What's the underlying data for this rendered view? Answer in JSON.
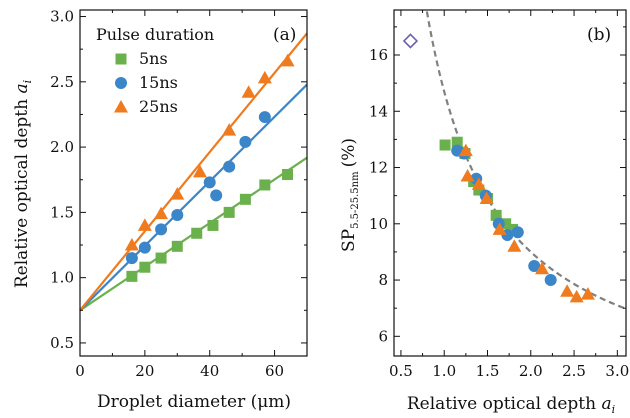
{
  "chart_data": [
    {
      "panel": "(a)",
      "type": "scatter",
      "xlabel": "Droplet diameter (μm)",
      "ylabel": "Relative optical depth a_i",
      "ylabel_main": "Relative optical depth",
      "ylabel_var": "a",
      "ylabel_sub": "i",
      "xlim": [
        0,
        70
      ],
      "ylim": [
        0.4,
        3.05
      ],
      "xticks": [
        0,
        20,
        40,
        60
      ],
      "yticks": [
        0.5,
        1.0,
        1.5,
        2.0,
        2.5,
        3.0
      ],
      "ytick_labels": [
        "0.5",
        "1.0",
        "1.5",
        "2.0",
        "2.5",
        "3.0"
      ],
      "legend_title": "Pulse duration",
      "legend_position": "top-left",
      "series": [
        {
          "name": "5ns",
          "marker": "square",
          "color": "#6ab04c",
          "x": [
            16,
            20,
            25,
            30,
            36,
            41,
            46,
            51,
            57,
            64
          ],
          "y": [
            1.01,
            1.08,
            1.15,
            1.24,
            1.34,
            1.4,
            1.5,
            1.6,
            1.71,
            1.79
          ],
          "fit": {
            "intercept": 0.75,
            "slope": 0.0167
          }
        },
        {
          "name": "15ns",
          "marker": "circle",
          "color": "#3a86c8",
          "x": [
            16,
            20,
            25,
            30,
            40,
            42,
            46,
            51,
            57
          ],
          "y": [
            1.15,
            1.23,
            1.37,
            1.48,
            1.73,
            1.63,
            1.85,
            2.04,
            2.23
          ],
          "fit": {
            "intercept": 0.75,
            "slope": 0.0247
          }
        },
        {
          "name": "25ns",
          "marker": "triangle",
          "color": "#f07a1e",
          "x": [
            16,
            20,
            25,
            30,
            37,
            46,
            52,
            57,
            64
          ],
          "y": [
            1.25,
            1.4,
            1.49,
            1.64,
            1.81,
            2.13,
            2.42,
            2.53,
            2.66
          ],
          "fit": {
            "intercept": 0.75,
            "slope": 0.0303
          }
        }
      ]
    },
    {
      "panel": "(b)",
      "type": "scatter",
      "xlabel": "Relative optical depth a_i",
      "xlabel_main": "Relative optical depth",
      "xlabel_var": "a",
      "xlabel_sub": "i",
      "ylabel": "SP_5.5-25.5nm (%)",
      "ylabel_main": "SP",
      "ylabel_sub": "5.5-25.5nm",
      "ylabel_unit": "(%)",
      "xlim": [
        0.42,
        3.1
      ],
      "ylim": [
        5.3,
        17.6
      ],
      "xticks": [
        0.5,
        1.0,
        1.5,
        2.0,
        2.5,
        3.0
      ],
      "xtick_labels": [
        "0.5",
        "1.0",
        "1.5",
        "2.0",
        "2.5",
        "3.0"
      ],
      "yticks": [
        6,
        8,
        10,
        12,
        14,
        16
      ],
      "series": [
        {
          "name": "5ns",
          "marker": "square",
          "color": "#6ab04c",
          "x": [
            1.01,
            1.15,
            1.24,
            1.34,
            1.4,
            1.5,
            1.6,
            1.71,
            1.79
          ],
          "y": [
            12.8,
            12.9,
            12.5,
            11.5,
            11.2,
            10.9,
            10.3,
            10.0,
            9.8
          ]
        },
        {
          "name": "15ns",
          "marker": "circle",
          "color": "#3a86c8",
          "x": [
            1.15,
            1.23,
            1.37,
            1.48,
            1.63,
            1.73,
            1.85,
            2.04,
            2.23
          ],
          "y": [
            12.6,
            12.5,
            11.6,
            11.0,
            10.0,
            9.6,
            9.7,
            8.5,
            8.0
          ]
        },
        {
          "name": "25ns",
          "marker": "triangle",
          "color": "#f07a1e",
          "x": [
            1.25,
            1.27,
            1.4,
            1.49,
            1.64,
            1.81,
            2.13,
            2.42,
            2.53,
            2.66
          ],
          "y": [
            12.6,
            11.7,
            11.4,
            10.9,
            9.8,
            9.2,
            8.4,
            7.6,
            7.4,
            7.5
          ]
        },
        {
          "name": "",
          "marker": "diamond-open",
          "color": "#6d5fb0",
          "x": [
            0.61
          ],
          "y": [
            16.5
          ]
        }
      ],
      "fit_curve": {
        "style": "dashed",
        "color": "#808080",
        "form": "c0 + c1/x",
        "c0": 3.3,
        "c1": 11.4
      }
    }
  ]
}
